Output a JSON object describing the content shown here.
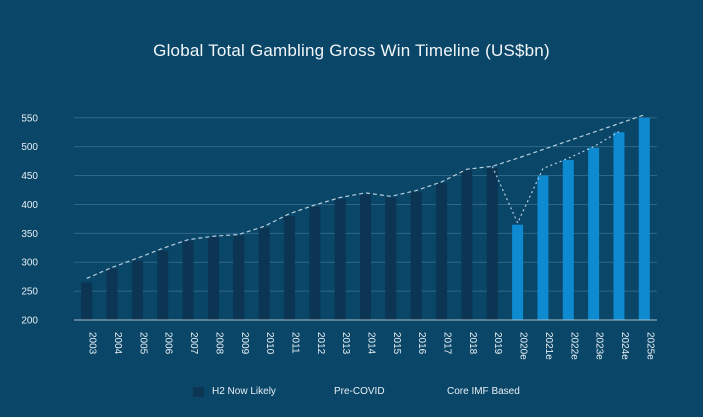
{
  "chart_data": {
    "type": "bar",
    "title": "Global Total Gambling Gross Win Timeline (US$bn)",
    "xlabel": "",
    "ylabel": "",
    "ylim": [
      200,
      560
    ],
    "yticks": [
      200,
      250,
      300,
      350,
      400,
      450,
      500,
      550
    ],
    "grid": true,
    "legend_position": "bottom",
    "categories": [
      "2003",
      "2004",
      "2005",
      "2006",
      "2007",
      "2008",
      "2009",
      "2010",
      "2011",
      "2012",
      "2013",
      "2014",
      "2015",
      "2016",
      "2017",
      "2018",
      "2019",
      "2020e",
      "2021e",
      "2022e",
      "2023e",
      "2024e",
      "2025e"
    ],
    "series": [
      {
        "name": "H2 Now Likely",
        "type": "bar",
        "values": [
          265,
          289,
          303,
          320,
          337,
          344,
          346,
          360,
          380,
          396,
          410,
          418,
          412,
          422,
          437,
          460,
          463,
          365,
          450,
          477,
          498,
          525,
          550
        ],
        "highlighted_from": "2020e"
      },
      {
        "name": "Pre-COVID",
        "type": "line",
        "values": [
          272,
          291,
          307,
          324,
          339,
          345,
          348,
          362,
          384,
          399,
          412,
          420,
          414,
          424,
          439,
          461,
          466,
          480,
          495,
          510,
          525,
          540,
          555
        ]
      },
      {
        "name": "Core IMF Based",
        "type": "line",
        "values": [
          null,
          null,
          null,
          null,
          null,
          null,
          null,
          null,
          null,
          null,
          null,
          null,
          null,
          null,
          null,
          null,
          466,
          368,
          462,
          480,
          500,
          526,
          null
        ]
      }
    ],
    "colors": {
      "bar_historic": "#0b3553",
      "bar_forecast": "#0d8ad0",
      "grid": "#2f6688",
      "axis": "#a8c0d0",
      "line": "#b8cedd"
    }
  }
}
